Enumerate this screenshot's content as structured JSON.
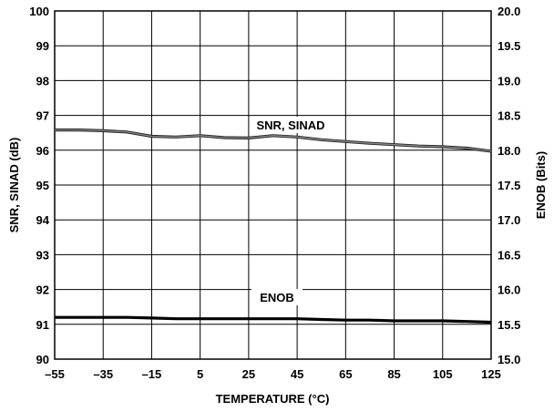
{
  "chart_data": {
    "type": "line",
    "xlabel": "TEMPERATURE (°C)",
    "ylabel": "SNR, SINAD (dB)",
    "y2label": "ENOB (Bits)",
    "xlim": [
      -55,
      125
    ],
    "ylim": [
      90,
      100
    ],
    "y2lim": [
      15.0,
      20.0
    ],
    "grid": true,
    "x_ticks": [
      "–55",
      "–35",
      "–15",
      "5",
      "25",
      "45",
      "65",
      "85",
      "105",
      "125"
    ],
    "y_ticks": [
      "90",
      "91",
      "92",
      "93",
      "94",
      "95",
      "96",
      "97",
      "98",
      "99",
      "100"
    ],
    "y2_ticks": [
      "15.0",
      "15.5",
      "16.0",
      "16.5",
      "17.0",
      "17.5",
      "18.0",
      "18.5",
      "19.0",
      "19.5",
      "20.0"
    ],
    "series": [
      {
        "name": "SNR, SINAD",
        "axis": "left",
        "x": [
          -55,
          -45,
          -35,
          -25,
          -15,
          -5,
          5,
          15,
          25,
          35,
          45,
          55,
          65,
          75,
          85,
          95,
          105,
          115,
          125
        ],
        "y": [
          96.58,
          96.58,
          96.56,
          96.52,
          96.4,
          96.38,
          96.42,
          96.36,
          96.35,
          96.42,
          96.38,
          96.3,
          96.25,
          96.2,
          96.16,
          96.12,
          96.1,
          96.06,
          95.97
        ]
      },
      {
        "name": "ENOB",
        "axis": "right",
        "x": [
          -55,
          -45,
          -35,
          -25,
          -15,
          -5,
          5,
          15,
          25,
          35,
          45,
          55,
          65,
          75,
          85,
          95,
          105,
          115,
          125
        ],
        "y": [
          15.6,
          15.6,
          15.6,
          15.6,
          15.59,
          15.58,
          15.58,
          15.58,
          15.58,
          15.58,
          15.58,
          15.57,
          15.56,
          15.56,
          15.55,
          15.55,
          15.55,
          15.54,
          15.53
        ]
      }
    ]
  }
}
